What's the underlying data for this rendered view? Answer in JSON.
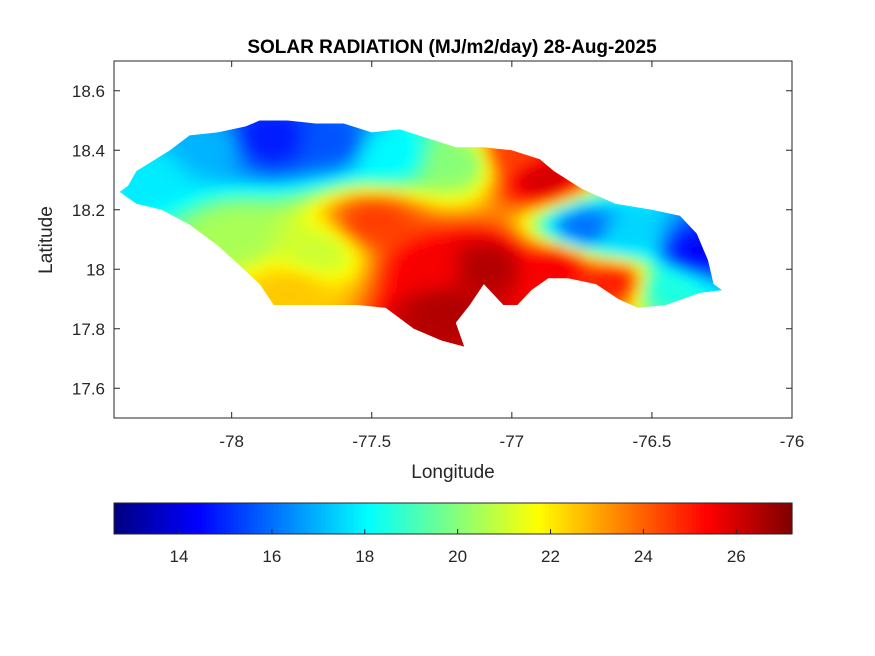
{
  "chart_data": {
    "type": "heatmap",
    "title": "SOLAR RADIATION (MJ/m2/day) 28-Aug-2025",
    "xlabel": "Longitude",
    "ylabel": "Latitude",
    "xlim": [
      -78.42,
      -76.0
    ],
    "ylim": [
      17.5,
      18.7
    ],
    "xticks": [
      -78,
      -77.5,
      -77,
      -76.5,
      -76
    ],
    "yticks": [
      17.6,
      17.8,
      18,
      18.2,
      18.4,
      18.6
    ],
    "xtick_labels": [
      "-78",
      "-77.5",
      "-77",
      "-76.5",
      "-76"
    ],
    "ytick_labels": [
      "17.6",
      "17.8",
      "18",
      "18.2",
      "18.4",
      "18.6"
    ],
    "grid": false,
    "colormap": "jet",
    "colorbar": {
      "orientation": "horizontal",
      "location": "below",
      "clim": [
        12.6,
        27.2
      ],
      "ticks": [
        14,
        16,
        18,
        20,
        22,
        24,
        26
      ],
      "tick_labels": [
        "14",
        "16",
        "18",
        "20",
        "22",
        "24",
        "26"
      ]
    },
    "region_outline": [
      [
        -78.37,
        18.28
      ],
      [
        -78.34,
        18.33
      ],
      [
        -78.22,
        18.4
      ],
      [
        -78.15,
        18.45
      ],
      [
        -78.05,
        18.46
      ],
      [
        -77.95,
        18.48
      ],
      [
        -77.9,
        18.5
      ],
      [
        -77.8,
        18.5
      ],
      [
        -77.7,
        18.49
      ],
      [
        -77.6,
        18.49
      ],
      [
        -77.5,
        18.46
      ],
      [
        -77.4,
        18.47
      ],
      [
        -77.3,
        18.44
      ],
      [
        -77.2,
        18.41
      ],
      [
        -77.1,
        18.41
      ],
      [
        -77.0,
        18.4
      ],
      [
        -76.9,
        18.37
      ],
      [
        -76.85,
        18.33
      ],
      [
        -76.75,
        18.27
      ],
      [
        -76.63,
        18.22
      ],
      [
        -76.5,
        18.2
      ],
      [
        -76.4,
        18.18
      ],
      [
        -76.34,
        18.12
      ],
      [
        -76.3,
        18.03
      ],
      [
        -76.28,
        17.95
      ],
      [
        -76.25,
        17.93
      ],
      [
        -76.33,
        17.92
      ],
      [
        -76.45,
        17.88
      ],
      [
        -76.55,
        17.87
      ],
      [
        -76.62,
        17.9
      ],
      [
        -76.7,
        17.95
      ],
      [
        -76.8,
        17.97
      ],
      [
        -76.87,
        17.97
      ],
      [
        -76.93,
        17.93
      ],
      [
        -76.98,
        17.88
      ],
      [
        -77.03,
        17.88
      ],
      [
        -77.1,
        17.95
      ],
      [
        -77.15,
        17.88
      ],
      [
        -77.2,
        17.82
      ],
      [
        -77.17,
        17.74
      ],
      [
        -77.25,
        17.76
      ],
      [
        -77.35,
        17.8
      ],
      [
        -77.45,
        17.87
      ],
      [
        -77.55,
        17.88
      ],
      [
        -77.7,
        17.88
      ],
      [
        -77.85,
        17.88
      ],
      [
        -77.9,
        17.95
      ],
      [
        -77.98,
        18.02
      ],
      [
        -78.05,
        18.08
      ],
      [
        -78.15,
        18.15
      ],
      [
        -78.25,
        18.2
      ],
      [
        -78.34,
        18.22
      ],
      [
        -78.4,
        18.26
      ]
    ],
    "value_trend_centers": [
      {
        "lon": -78.3,
        "lat": 18.3,
        "value": 17.8
      },
      {
        "lon": -78.1,
        "lat": 18.4,
        "value": 17.0
      },
      {
        "lon": -77.87,
        "lat": 18.43,
        "value": 14.8
      },
      {
        "lon": -77.65,
        "lat": 18.42,
        "value": 15.6
      },
      {
        "lon": -77.45,
        "lat": 18.38,
        "value": 18.0
      },
      {
        "lon": -77.2,
        "lat": 18.35,
        "value": 20.0
      },
      {
        "lon": -77.0,
        "lat": 18.38,
        "value": 24.5
      },
      {
        "lon": -76.9,
        "lat": 18.3,
        "value": 26.0
      },
      {
        "lon": -76.75,
        "lat": 18.13,
        "value": 16.0
      },
      {
        "lon": -76.6,
        "lat": 18.1,
        "value": 17.5
      },
      {
        "lon": -76.35,
        "lat": 18.05,
        "value": 14.5
      },
      {
        "lon": -76.45,
        "lat": 17.93,
        "value": 18.5
      },
      {
        "lon": -78.0,
        "lat": 18.1,
        "value": 20.5
      },
      {
        "lon": -77.7,
        "lat": 18.05,
        "value": 21.0
      },
      {
        "lon": -77.8,
        "lat": 17.92,
        "value": 22.5
      },
      {
        "lon": -77.5,
        "lat": 18.15,
        "value": 24.5
      },
      {
        "lon": -77.3,
        "lat": 18.0,
        "value": 25.5
      },
      {
        "lon": -77.1,
        "lat": 18.0,
        "value": 26.5
      },
      {
        "lon": -77.25,
        "lat": 17.85,
        "value": 26.5
      },
      {
        "lon": -76.85,
        "lat": 18.0,
        "value": 25.5
      },
      {
        "lon": -76.65,
        "lat": 17.95,
        "value": 25.0
      }
    ]
  }
}
